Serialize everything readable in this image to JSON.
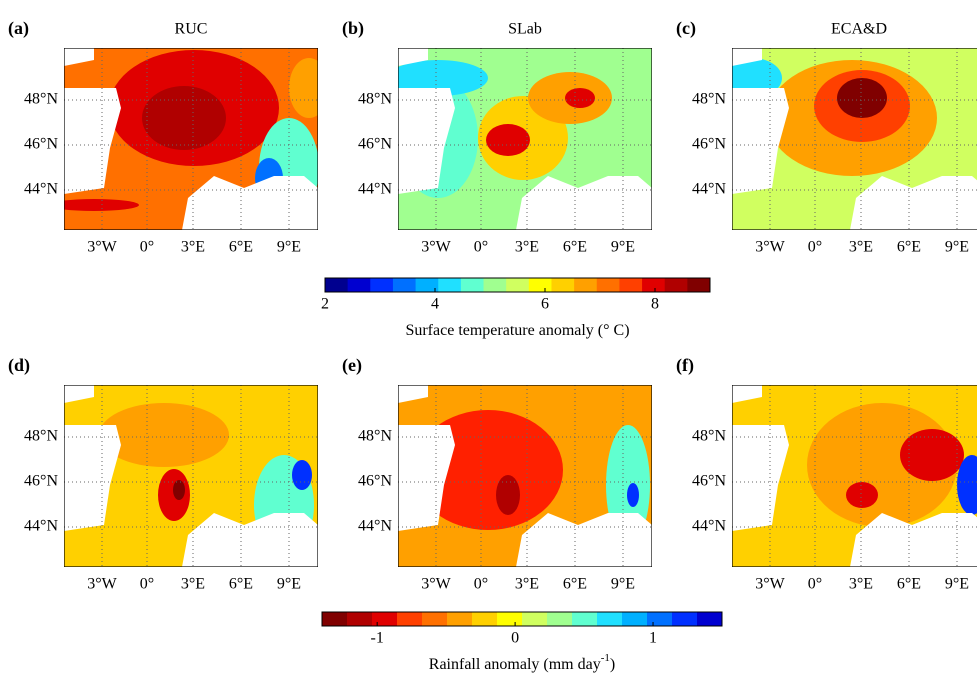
{
  "panels": [
    {
      "label": "(a)",
      "title": "RUC",
      "lat_labels": [
        "48°N",
        "46°N",
        "44°N"
      ],
      "lon_labels": [
        "3°W",
        "0°",
        "3°E",
        "6°E",
        "9°E"
      ]
    },
    {
      "label": "(b)",
      "title": "SLab",
      "lat_labels": [
        "48°N",
        "46°N",
        "44°N"
      ],
      "lon_labels": [
        "3°W",
        "0°",
        "3°E",
        "6°E",
        "9°E"
      ]
    },
    {
      "label": "(c)",
      "title": "ECA&D",
      "lat_labels": [
        "48°N",
        "46°N",
        "44°N"
      ],
      "lon_labels": [
        "3°W",
        "0°",
        "3°E",
        "6°E",
        "9°E"
      ]
    },
    {
      "label": "(d)",
      "lat_labels": [
        "48°N",
        "46°N",
        "44°N"
      ],
      "lon_labels": [
        "3°W",
        "0°",
        "3°E",
        "6°E",
        "9°E"
      ]
    },
    {
      "label": "(e)",
      "lat_labels": [
        "48°N",
        "46°N",
        "44°N"
      ],
      "lon_labels": [
        "3°W",
        "0°",
        "3°E",
        "6°E",
        "9°E"
      ]
    },
    {
      "label": "(f)",
      "lat_labels": [
        "48°N",
        "46°N",
        "44°N"
      ],
      "lon_labels": [
        "3°W",
        "0°",
        "3°E",
        "6°E",
        "9°E"
      ]
    }
  ],
  "colorbars": [
    {
      "range": [
        2,
        9
      ],
      "ticks": [
        2,
        4,
        6,
        8
      ],
      "label": "Surface temperature anomaly (° C)",
      "colors": [
        "#00008f",
        "#0000d0",
        "#0030ff",
        "#0070ff",
        "#00b0ff",
        "#20e0ff",
        "#60ffd0",
        "#a0ff90",
        "#d0ff60",
        "#ffff00",
        "#ffd000",
        "#ffa000",
        "#ff7000",
        "#ff4000",
        "#e00000",
        "#b00000",
        "#800000"
      ]
    },
    {
      "range": [
        -1.4,
        1.5
      ],
      "ticks": [
        -1,
        0,
        1
      ],
      "label": "Rainfall anomaly (mm day",
      "label_sup": "-1",
      "label_end": ")",
      "colors": [
        "#800000",
        "#b00000",
        "#e00000",
        "#ff4000",
        "#ff7000",
        "#ffa000",
        "#ffd000",
        "#ffff00",
        "#d0ff60",
        "#a0ff90",
        "#60ffd0",
        "#20e0ff",
        "#00b0ff",
        "#0070ff",
        "#0030ff",
        "#0000d0"
      ]
    }
  ]
}
